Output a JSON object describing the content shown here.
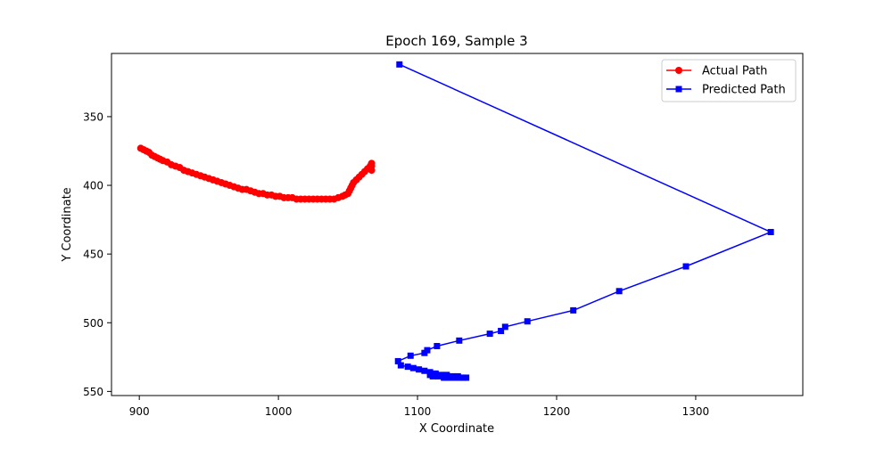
{
  "chart_data": {
    "type": "line",
    "title": "Epoch 169, Sample 3",
    "xlabel": "X Coordinate",
    "ylabel": "Y Coordinate",
    "xlim": [
      880,
      1377
    ],
    "ylim": [
      553,
      304
    ],
    "y_inverted": true,
    "grid": false,
    "legend_position": "top-right",
    "x_ticks": [
      900,
      1000,
      1100,
      1200,
      1300
    ],
    "y_ticks": [
      350,
      400,
      450,
      500,
      550
    ],
    "series": [
      {
        "name": "Actual Path",
        "color": "#ff0000",
        "marker": "circle",
        "x": [
          901,
          903,
          905,
          907,
          909,
          911,
          913,
          915,
          917,
          920,
          923,
          926,
          929,
          932,
          935,
          938,
          941,
          944,
          947,
          950,
          953,
          956,
          959,
          962,
          965,
          968,
          971,
          974,
          977,
          980,
          983,
          986,
          989,
          992,
          995,
          998,
          1001,
          1004,
          1007,
          1010,
          1013,
          1016,
          1019,
          1022,
          1025,
          1028,
          1031,
          1034,
          1037,
          1040,
          1043,
          1046,
          1048,
          1050,
          1051,
          1052,
          1053,
          1054,
          1056,
          1058,
          1060,
          1062,
          1064,
          1066,
          1067,
          1067,
          1067
        ],
        "y": [
          373,
          374,
          375,
          376,
          378,
          379,
          380,
          381,
          382,
          383,
          385,
          386,
          387,
          389,
          390,
          391,
          392,
          393,
          394,
          395,
          396,
          397,
          398,
          399,
          400,
          401,
          402,
          403,
          403,
          404,
          405,
          406,
          406,
          407,
          407,
          408,
          408,
          409,
          409,
          409,
          410,
          410,
          410,
          410,
          410,
          410,
          410,
          410,
          410,
          410,
          409,
          408,
          407,
          406,
          404,
          402,
          400,
          398,
          396,
          394,
          392,
          390,
          388,
          386,
          384,
          386,
          389
        ]
      },
      {
        "name": "Predicted Path",
        "color": "#0000ff",
        "marker": "square",
        "x": [
          1087,
          1354,
          1293,
          1245,
          1212,
          1179,
          1163,
          1160,
          1152,
          1130,
          1114,
          1107,
          1105,
          1095,
          1086,
          1088,
          1093,
          1097,
          1101,
          1105,
          1109,
          1113,
          1117,
          1121,
          1125,
          1129,
          1133,
          1135,
          1131,
          1127,
          1123,
          1119,
          1115,
          1111,
          1109
        ],
        "y": [
          312,
          434,
          459,
          477,
          491,
          499,
          503,
          506,
          508,
          513,
          517,
          520,
          522,
          524,
          528,
          531,
          532,
          533,
          534,
          535,
          536,
          537,
          538,
          538,
          539,
          539,
          540,
          540,
          540,
          540,
          540,
          540,
          539,
          539,
          538
        ]
      }
    ]
  }
}
